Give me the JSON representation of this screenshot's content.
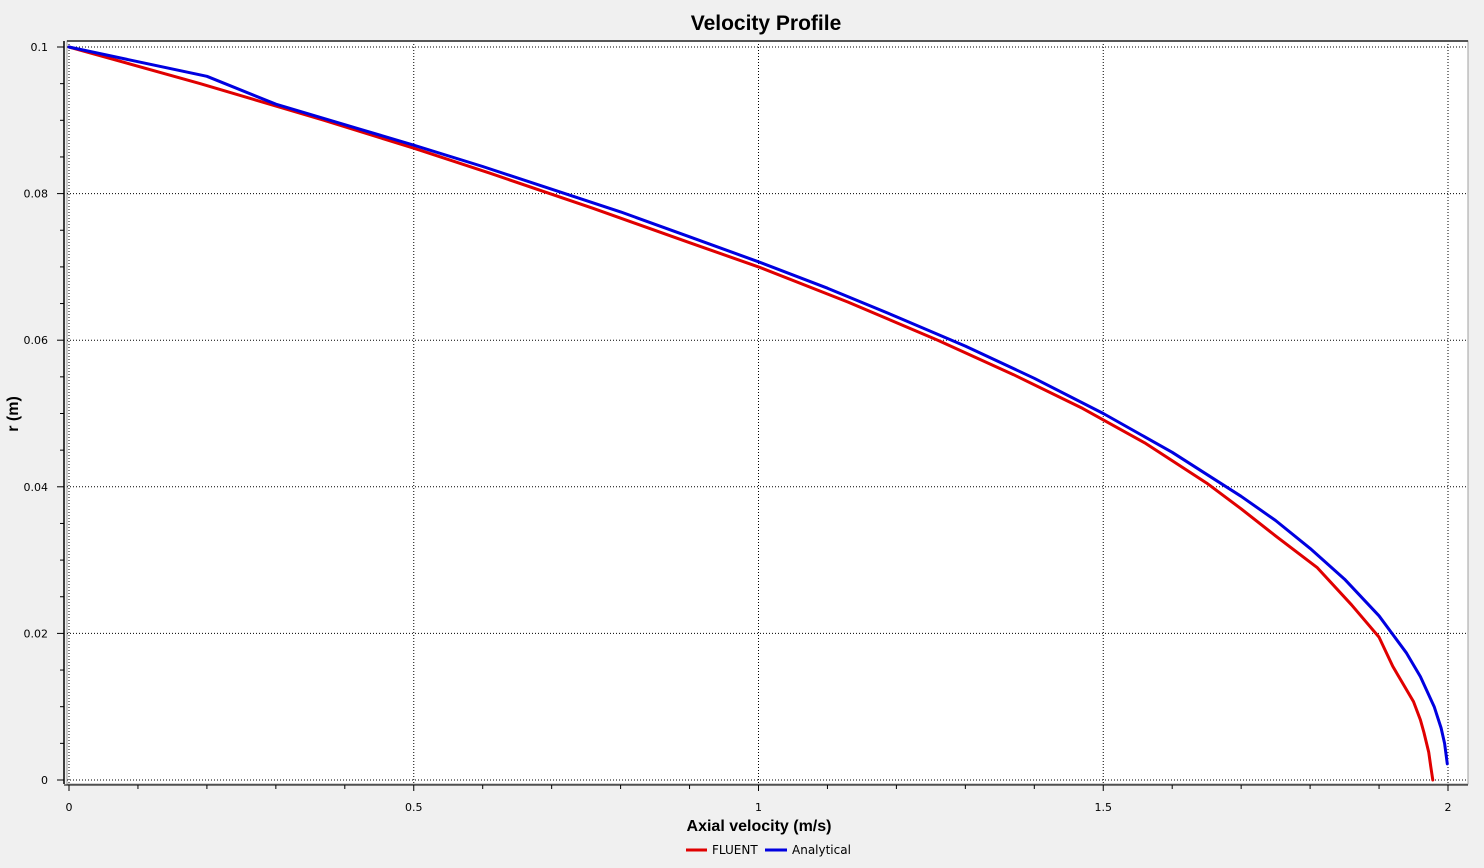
{
  "chart_data": {
    "type": "line",
    "title": "Velocity Profile",
    "xlabel": "Axial velocity (m/s)",
    "ylabel": "r (m)",
    "xlim": [
      0,
      2
    ],
    "ylim": [
      0,
      0.1
    ],
    "x_ticks": [
      0,
      0.5,
      1,
      1.5,
      2
    ],
    "x_tick_labels": [
      "0",
      "0.5",
      "1",
      "1.5",
      "2"
    ],
    "y_ticks": [
      0,
      0.02,
      0.04,
      0.06,
      0.08,
      0.1
    ],
    "y_tick_labels": [
      "0",
      "0.02",
      "0.04",
      "0.06",
      "0.08",
      "0.1"
    ],
    "grid": true,
    "legend_position": "bottom-center",
    "series": [
      {
        "name": "FLUENT",
        "color": "#e00000",
        "points": [
          [
            0.0,
            0.1
          ],
          [
            0.19,
            0.095
          ],
          [
            0.37,
            0.09
          ],
          [
            0.5,
            0.0862
          ],
          [
            0.61,
            0.0828
          ],
          [
            0.76,
            0.078
          ],
          [
            0.9,
            0.0733
          ],
          [
            1.0,
            0.07
          ],
          [
            1.13,
            0.0652
          ],
          [
            1.26,
            0.06
          ],
          [
            1.37,
            0.0553
          ],
          [
            1.47,
            0.0507
          ],
          [
            1.56,
            0.046
          ],
          [
            1.65,
            0.0405
          ],
          [
            1.7,
            0.037
          ],
          [
            1.75,
            0.0333
          ],
          [
            1.81,
            0.029
          ],
          [
            1.86,
            0.0239
          ],
          [
            1.9,
            0.0195
          ],
          [
            1.92,
            0.0155
          ],
          [
            1.95,
            0.0107
          ],
          [
            1.96,
            0.0082
          ],
          [
            1.965,
            0.0065
          ],
          [
            1.972,
            0.0038
          ],
          [
            1.975,
            0.0018
          ],
          [
            1.978,
            0.0
          ]
        ]
      },
      {
        "name": "Analytical",
        "color": "#0000e0",
        "points": [
          [
            0.0,
            0.1
          ],
          [
            0.1,
            0.098
          ],
          [
            0.2,
            0.096
          ],
          [
            0.3,
            0.0922
          ],
          [
            0.4,
            0.0894
          ],
          [
            0.5,
            0.0866
          ],
          [
            0.6,
            0.0837
          ],
          [
            0.7,
            0.0806
          ],
          [
            0.8,
            0.0775
          ],
          [
            0.9,
            0.0741
          ],
          [
            1.0,
            0.0707
          ],
          [
            1.1,
            0.0671
          ],
          [
            1.2,
            0.0632
          ],
          [
            1.3,
            0.0592
          ],
          [
            1.4,
            0.0548
          ],
          [
            1.5,
            0.05
          ],
          [
            1.6,
            0.0447
          ],
          [
            1.7,
            0.0387
          ],
          [
            1.75,
            0.0354
          ],
          [
            1.8,
            0.0316
          ],
          [
            1.85,
            0.0274
          ],
          [
            1.9,
            0.0224
          ],
          [
            1.94,
            0.0173
          ],
          [
            1.96,
            0.0141
          ],
          [
            1.98,
            0.01
          ],
          [
            1.99,
            0.0071
          ],
          [
            1.995,
            0.005
          ],
          [
            1.999,
            0.0022
          ]
        ]
      }
    ]
  }
}
